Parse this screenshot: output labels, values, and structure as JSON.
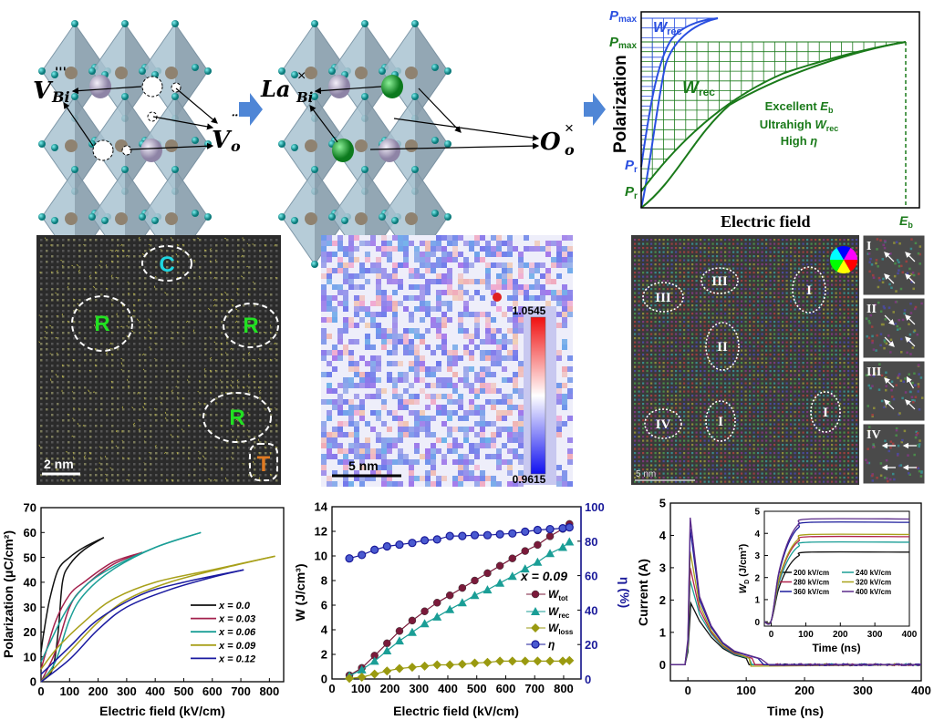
{
  "crystal_panel": {
    "left_labels": {
      "vbi_main": "V",
      "vbi_sub": "Bi",
      "vbi_sup": "'''",
      "vo_main": "V",
      "vo_sub": "o",
      "vo_sup": "¨"
    },
    "right_labels": {
      "la_main": "La",
      "la_sub": "Bi",
      "la_sup": "×",
      "o_main": "O",
      "o_sub": "o",
      "o_sup": "×"
    },
    "colors": {
      "octahedron": "#a9c3d1",
      "oxygen": "#17a3a3",
      "bi": "#b7aec9",
      "la": "#1fa33a",
      "arrow": "#4f86d6"
    }
  },
  "schematic": {
    "ylabel": "Polarization",
    "xlabel": "Electric field",
    "blue_pmax": "P",
    "blue_pmax_sub": "max",
    "blue_wrec": "W",
    "blue_wrec_sub": "rec",
    "blue_pr": "P",
    "blue_pr_sub": "r",
    "green_pmax": "P",
    "green_pmax_sub": "max",
    "green_wrec": "W",
    "green_wrec_sub": "rec",
    "green_pr": "P",
    "green_pr_sub": "r",
    "eb": "E",
    "eb_sub": "b",
    "note_line1": "Excellent ",
    "note_line1_i": "E",
    "note_line1_sub": "b",
    "note_line2": "Ultrahigh ",
    "note_line2_i": "W",
    "note_line2_sub": "rec",
    "note_line3": "High ",
    "note_line3_i": "η",
    "colors": {
      "blue": "#2a4fe0",
      "green": "#1a7a1a"
    }
  },
  "stem_panel": {
    "labels": [
      "C",
      "R",
      "R",
      "R",
      "T"
    ],
    "scale": "2 nm",
    "label_colors": {
      "C": "#1ed6e0",
      "R": "#22e022",
      "T": "#e07a22"
    }
  },
  "strain_map": {
    "colorbar_max": "1.0545",
    "colorbar_min": "0.9615",
    "scale": "5 nm"
  },
  "polar_map": {
    "labels": [
      "III",
      "III",
      "I",
      "II",
      "IV",
      "I",
      "I"
    ],
    "scale": "5 nm",
    "insets": [
      "I",
      "II",
      "III",
      "IV"
    ]
  },
  "chart_data": [
    {
      "type": "line",
      "xlabel": "Electric field (kV/cm)",
      "ylabel": "Polarization (μC/cm²)",
      "xlim": [
        0,
        850
      ],
      "ylim": [
        0,
        70
      ],
      "xticks": [
        "0",
        "100",
        "200",
        "300",
        "400",
        "500",
        "600",
        "700",
        "800"
      ],
      "yticks": [
        "0",
        "10",
        "20",
        "30",
        "40",
        "50",
        "60",
        "70"
      ],
      "legend_position": "center-right",
      "series": [
        {
          "name": "x = 0.0",
          "color": "#111111",
          "upper": [
            [
              220,
              58
            ],
            [
              150,
              54
            ],
            [
              100,
              50
            ],
            [
              60,
              45
            ],
            [
              30,
              33
            ],
            [
              10,
              20
            ],
            [
              0,
              12
            ]
          ],
          "lower": [
            [
              0,
              0
            ],
            [
              40,
              5
            ],
            [
              60,
              20
            ],
            [
              75,
              40
            ],
            [
              100,
              47
            ],
            [
              150,
              53
            ],
            [
              220,
              58
            ]
          ]
        },
        {
          "name": "x = 0.03",
          "color": "#a3204c",
          "upper": [
            [
              355,
              52
            ],
            [
              250,
              48
            ],
            [
              150,
              40
            ],
            [
              100,
              35
            ],
            [
              50,
              24
            ],
            [
              0,
              5
            ]
          ],
          "lower": [
            [
              0,
              0
            ],
            [
              50,
              12
            ],
            [
              100,
              30
            ],
            [
              150,
              38
            ],
            [
              250,
              47
            ],
            [
              355,
              52
            ]
          ]
        },
        {
          "name": "x = 0.06",
          "color": "#1a9e96",
          "upper": [
            [
              560,
              60
            ],
            [
              400,
              54
            ],
            [
              250,
              46
            ],
            [
              150,
              38
            ],
            [
              80,
              27
            ],
            [
              0,
              8
            ]
          ],
          "lower": [
            [
              0,
              0
            ],
            [
              50,
              8
            ],
            [
              100,
              25
            ],
            [
              150,
              35
            ],
            [
              250,
              45
            ],
            [
              400,
              54
            ],
            [
              560,
              60
            ]
          ]
        },
        {
          "name": "x = 0.09",
          "color": "#a8a01a",
          "upper": [
            [
              820,
              50.5
            ],
            [
              600,
              45
            ],
            [
              400,
              40
            ],
            [
              250,
              33
            ],
            [
              150,
              24
            ],
            [
              60,
              14
            ],
            [
              0,
              5
            ]
          ],
          "lower": [
            [
              0,
              0
            ],
            [
              100,
              12
            ],
            [
              200,
              24
            ],
            [
              300,
              33
            ],
            [
              450,
              40
            ],
            [
              650,
              46
            ],
            [
              820,
              50.5
            ]
          ]
        },
        {
          "name": "x = 0.12",
          "color": "#1a1aa0",
          "upper": [
            [
              710,
              45
            ],
            [
              500,
              40
            ],
            [
              350,
              35
            ],
            [
              200,
              25
            ],
            [
              100,
              14
            ],
            [
              0,
              3
            ]
          ],
          "lower": [
            [
              0,
              0
            ],
            [
              100,
              9
            ],
            [
              200,
              21
            ],
            [
              300,
              30
            ],
            [
              450,
              37
            ],
            [
              600,
              42
            ],
            [
              710,
              45
            ]
          ]
        }
      ]
    },
    {
      "type": "line",
      "xlabel": "Electric field (kV/cm)",
      "ylabel": "W (J/cm³)",
      "y2label": "η (%)",
      "xlim": [
        0,
        860
      ],
      "ylim": [
        0,
        14
      ],
      "y2lim": [
        0,
        100
      ],
      "xticks": [
        "0",
        "100",
        "200",
        "300",
        "400",
        "500",
        "600",
        "700",
        "800"
      ],
      "yticks": [
        "0",
        "2",
        "4",
        "6",
        "8",
        "10",
        "12",
        "14"
      ],
      "y2ticks": [
        "0",
        "20",
        "40",
        "60",
        "80",
        "100"
      ],
      "annotation": "x = 0.09",
      "x": [
        60,
        103,
        147,
        190,
        233,
        277,
        320,
        363,
        407,
        450,
        493,
        537,
        580,
        623,
        667,
        710,
        753,
        797,
        820
      ],
      "series": [
        {
          "name": "W",
          "sub": "tot",
          "marker": "circle",
          "color": "#7a1a3a",
          "axis": "left",
          "values": [
            0.3,
            0.9,
            1.9,
            2.9,
            3.9,
            4.75,
            5.5,
            6.2,
            6.8,
            7.4,
            8.0,
            8.6,
            9.2,
            9.8,
            10.4,
            10.9,
            11.6,
            12.2,
            12.6
          ]
        },
        {
          "name": "W",
          "sub": "rec",
          "marker": "triangle",
          "color": "#1a9e96",
          "axis": "left",
          "values": [
            0.25,
            0.75,
            1.45,
            2.3,
            3.1,
            3.8,
            4.5,
            5.05,
            5.65,
            6.2,
            6.8,
            7.25,
            7.8,
            8.35,
            8.95,
            9.5,
            10.2,
            10.7,
            11.15
          ]
        },
        {
          "name": "W",
          "sub": "loss",
          "marker": "diamond",
          "color": "#9a9a10",
          "axis": "left",
          "values": [
            0.05,
            0.15,
            0.4,
            0.65,
            0.85,
            0.95,
            1.05,
            1.15,
            1.15,
            1.2,
            1.3,
            1.35,
            1.45,
            1.45,
            1.45,
            1.45,
            1.45,
            1.45,
            1.5
          ]
        },
        {
          "name": "η",
          "sub": "",
          "marker": "circle-open",
          "color": "#1a1a9a",
          "axis": "right",
          "values": [
            70,
            72,
            75,
            77,
            78,
            79,
            80.5,
            81,
            83,
            83,
            83.5,
            83.5,
            84,
            84.5,
            85.5,
            86.5,
            87,
            87.5,
            88
          ]
        }
      ]
    },
    {
      "type": "line",
      "xlabel": "Time (ns)",
      "ylabel": "Current (A)",
      "xlim": [
        -30,
        400
      ],
      "ylim": [
        -0.5,
        5
      ],
      "xticks": [
        "0",
        "100",
        "200",
        "300",
        "400"
      ],
      "yticks": [
        "0",
        "1",
        "2",
        "3",
        "4",
        "5"
      ],
      "series": [
        {
          "name": "200 kV/cm",
          "color": "#111111",
          "points": [
            [
              -30,
              0
            ],
            [
              -5,
              0
            ],
            [
              0,
              0.4
            ],
            [
              5,
              1.9
            ],
            [
              20,
              1.35
            ],
            [
              40,
              0.85
            ],
            [
              60,
              0.5
            ],
            [
              80,
              0.3
            ],
            [
              100,
              0.2
            ],
            [
              105,
              0
            ],
            [
              400,
              0
            ]
          ]
        },
        {
          "name": "240 kV/cm",
          "color": "#1a9e96",
          "points": [
            [
              -30,
              0
            ],
            [
              -5,
              0
            ],
            [
              0,
              0.5
            ],
            [
              4,
              2.6
            ],
            [
              20,
              1.55
            ],
            [
              40,
              0.95
            ],
            [
              60,
              0.55
            ],
            [
              80,
              0.32
            ],
            [
              105,
              0.2
            ],
            [
              110,
              0
            ],
            [
              400,
              0
            ]
          ]
        },
        {
          "name": "280 kV/cm",
          "color": "#b0224d",
          "points": [
            [
              -30,
              0
            ],
            [
              -5,
              0
            ],
            [
              0,
              0.6
            ],
            [
              4,
              3.0
            ],
            [
              20,
              1.7
            ],
            [
              40,
              1.0
            ],
            [
              60,
              0.58
            ],
            [
              80,
              0.35
            ],
            [
              110,
              0.2
            ],
            [
              115,
              0
            ],
            [
              400,
              0
            ]
          ]
        },
        {
          "name": "320 kV/cm",
          "color": "#a8a21a",
          "points": [
            [
              -30,
              0
            ],
            [
              -5,
              0
            ],
            [
              0,
              0.6
            ],
            [
              4,
              3.5
            ],
            [
              20,
              1.85
            ],
            [
              40,
              1.05
            ],
            [
              60,
              0.6
            ],
            [
              80,
              0.38
            ],
            [
              105,
              0.2
            ],
            [
              108,
              -0.05
            ],
            [
              400,
              0
            ]
          ]
        },
        {
          "name": "360 kV/cm",
          "color": "#1c1c9c",
          "points": [
            [
              -30,
              0
            ],
            [
              -5,
              0
            ],
            [
              0,
              0.7
            ],
            [
              4,
              4.2
            ],
            [
              20,
              2.0
            ],
            [
              40,
              1.15
            ],
            [
              60,
              0.65
            ],
            [
              80,
              0.4
            ],
            [
              120,
              0.2
            ],
            [
              130,
              0
            ],
            [
              400,
              0
            ]
          ]
        },
        {
          "name": "400 kV/cm",
          "color": "#5a2a8a",
          "points": [
            [
              -30,
              0
            ],
            [
              -5,
              0
            ],
            [
              0,
              0.8
            ],
            [
              4,
              4.55
            ],
            [
              20,
              2.1
            ],
            [
              40,
              1.2
            ],
            [
              60,
              0.68
            ],
            [
              80,
              0.42
            ],
            [
              125,
              0.18
            ],
            [
              140,
              -0.02
            ],
            [
              400,
              0
            ]
          ]
        }
      ],
      "inset": {
        "xlabel": "Time (ns)",
        "ylabel": "W",
        "ylabel_sub": "D",
        "ylabel_unit": " (J/cm³)",
        "xlim": [
          -20,
          400
        ],
        "ylim": [
          -0.2,
          5
        ],
        "xticks": [
          "0",
          "100",
          "200",
          "300",
          "400"
        ],
        "yticks": [
          "0",
          "1",
          "2",
          "3",
          "4",
          "5"
        ],
        "series": [
          {
            "name": "200 kV/cm",
            "color": "#111111",
            "final": 3.15
          },
          {
            "name": "240 kV/cm",
            "color": "#1a9e96",
            "final": 3.6
          },
          {
            "name": "280 kV/cm",
            "color": "#b0224d",
            "final": 3.85
          },
          {
            "name": "320 kV/cm",
            "color": "#a8a21a",
            "final": 3.95
          },
          {
            "name": "360 kV/cm",
            "color": "#1c1c9c",
            "final": 4.5
          },
          {
            "name": "400 kV/cm",
            "color": "#5a2a8a",
            "final": 4.65
          }
        ]
      }
    }
  ]
}
